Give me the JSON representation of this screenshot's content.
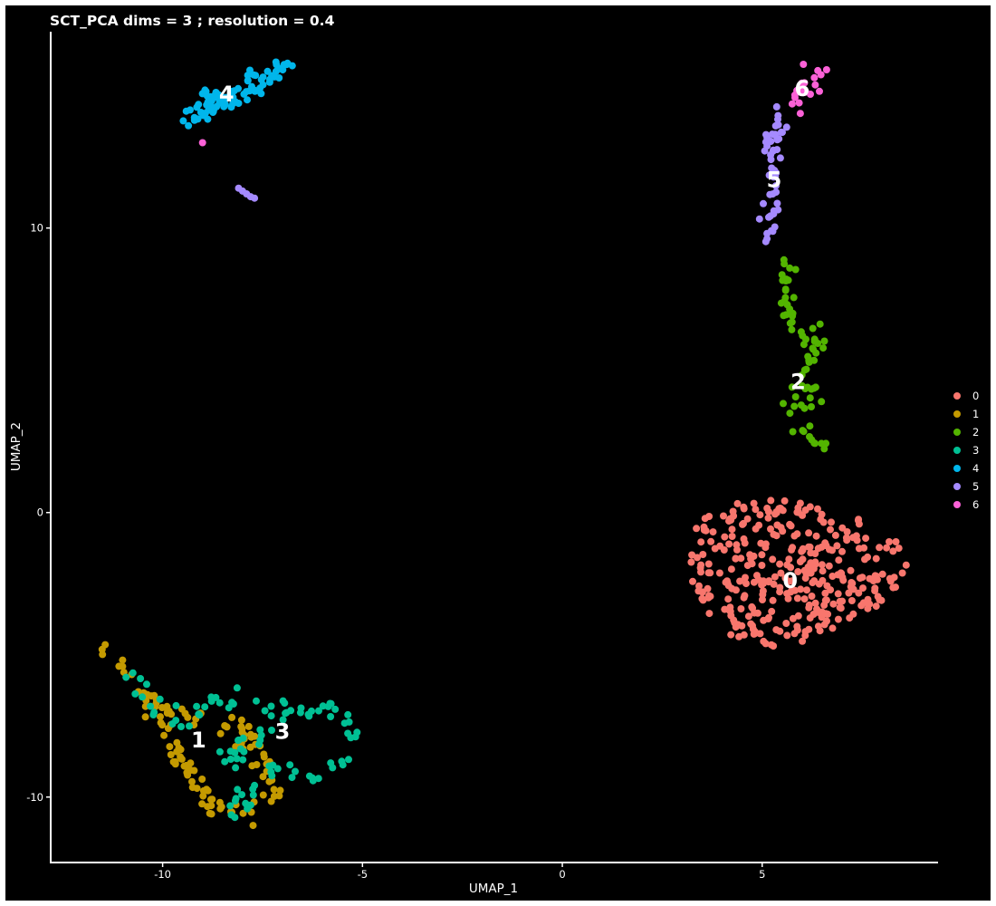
{
  "chart_data": {
    "type": "scatter",
    "title": "SCT_PCA dims =  3 ; resolution = 0.4",
    "xlabel": "UMAP_1",
    "ylabel": "UMAP_2",
    "xlim": [
      -12.8,
      9.4
    ],
    "ylim": [
      -12.3,
      16.9
    ],
    "xticks": [
      -10,
      -5,
      0,
      5
    ],
    "yticks": [
      -10,
      0,
      10
    ],
    "grid": false,
    "background": "#000000",
    "foreground": "#ffffff",
    "legend": {
      "position": "right",
      "entries": [
        "0",
        "1",
        "2",
        "3",
        "4",
        "5",
        "6"
      ]
    },
    "series": [
      {
        "name": "0",
        "color": "#F8766D",
        "label_pos": [
          5.7,
          -2.4
        ],
        "shape": "cloud",
        "center": [
          5.7,
          -2.0
        ],
        "radius": [
          2.7,
          2.6
        ],
        "count": 340
      },
      {
        "name": "1",
        "color": "#C49A00",
        "label_pos": [
          -9.1,
          -8.0
        ],
        "path": [
          [
            -11.7,
            -4.6
          ],
          [
            -10.9,
            -5.6
          ],
          [
            -10.1,
            -7.0
          ],
          [
            -9.6,
            -8.4
          ],
          [
            -9.2,
            -9.7
          ],
          [
            -8.6,
            -10.3
          ],
          [
            -7.6,
            -10.6
          ],
          [
            -7.2,
            -9.6
          ],
          [
            -7.6,
            -8.4
          ],
          [
            -8.4,
            -7.4
          ],
          [
            -9.6,
            -7.0
          ]
        ],
        "count": 120
      },
      {
        "name": "2",
        "color": "#53B400",
        "label_pos": [
          5.9,
          4.6
        ],
        "path": [
          [
            5.6,
            8.8
          ],
          [
            5.6,
            7.4
          ],
          [
            5.8,
            6.4
          ],
          [
            6.6,
            6.0
          ],
          [
            6.1,
            5.2
          ],
          [
            5.8,
            4.5
          ],
          [
            6.4,
            4.2
          ],
          [
            5.7,
            3.8
          ],
          [
            5.9,
            3.1
          ],
          [
            6.4,
            2.6
          ],
          [
            6.9,
            2.3
          ]
        ],
        "count": 75
      },
      {
        "name": "3",
        "color": "#00C094",
        "label_pos": [
          -7.0,
          -7.7
        ],
        "path": [
          [
            -10.7,
            -5.7
          ],
          [
            -9.8,
            -7.4
          ],
          [
            -8.5,
            -6.5
          ],
          [
            -7.2,
            -7.0
          ],
          [
            -6.0,
            -6.7
          ],
          [
            -5.3,
            -7.4
          ],
          [
            -5.3,
            -8.8
          ],
          [
            -5.9,
            -9.6
          ],
          [
            -7.2,
            -9.0
          ],
          [
            -8.2,
            -10.6
          ],
          [
            -8.3,
            -8.5
          ],
          [
            -7.5,
            -7.6
          ]
        ],
        "count": 105
      },
      {
        "name": "4",
        "color": "#00B6EB",
        "label_pos": [
          -8.4,
          14.7
        ],
        "path": [
          [
            -9.5,
            13.8
          ],
          [
            -9.0,
            14.2
          ],
          [
            -8.4,
            14.6
          ],
          [
            -7.8,
            15.0
          ],
          [
            -7.4,
            15.2
          ],
          [
            -7.0,
            15.5
          ],
          [
            -6.8,
            15.6
          ]
        ],
        "count": 90
      },
      {
        "name": "5",
        "color": "#A58AFF",
        "label_pos": [
          5.3,
          11.7
        ],
        "path": [
          [
            5.5,
            14.0
          ],
          [
            5.3,
            13.0
          ],
          [
            5.2,
            12.4
          ],
          [
            5.3,
            11.4
          ],
          [
            5.2,
            10.4
          ],
          [
            5.3,
            9.3
          ]
        ],
        "extra": [
          [
            -7.9,
            11.2
          ],
          [
            -8.0,
            11.3
          ],
          [
            -7.8,
            11.1
          ],
          [
            -7.7,
            11.05
          ],
          [
            -8.1,
            11.4
          ]
        ],
        "count": 50
      },
      {
        "name": "6",
        "color": "#FB61D7",
        "label_pos": [
          6.0,
          14.9
        ],
        "path": [
          [
            5.9,
            14.4
          ],
          [
            6.0,
            14.8
          ],
          [
            6.2,
            15.2
          ],
          [
            6.4,
            15.5
          ]
        ],
        "extra": [
          [
            -9.0,
            13.0
          ]
        ],
        "count": 22
      }
    ]
  }
}
